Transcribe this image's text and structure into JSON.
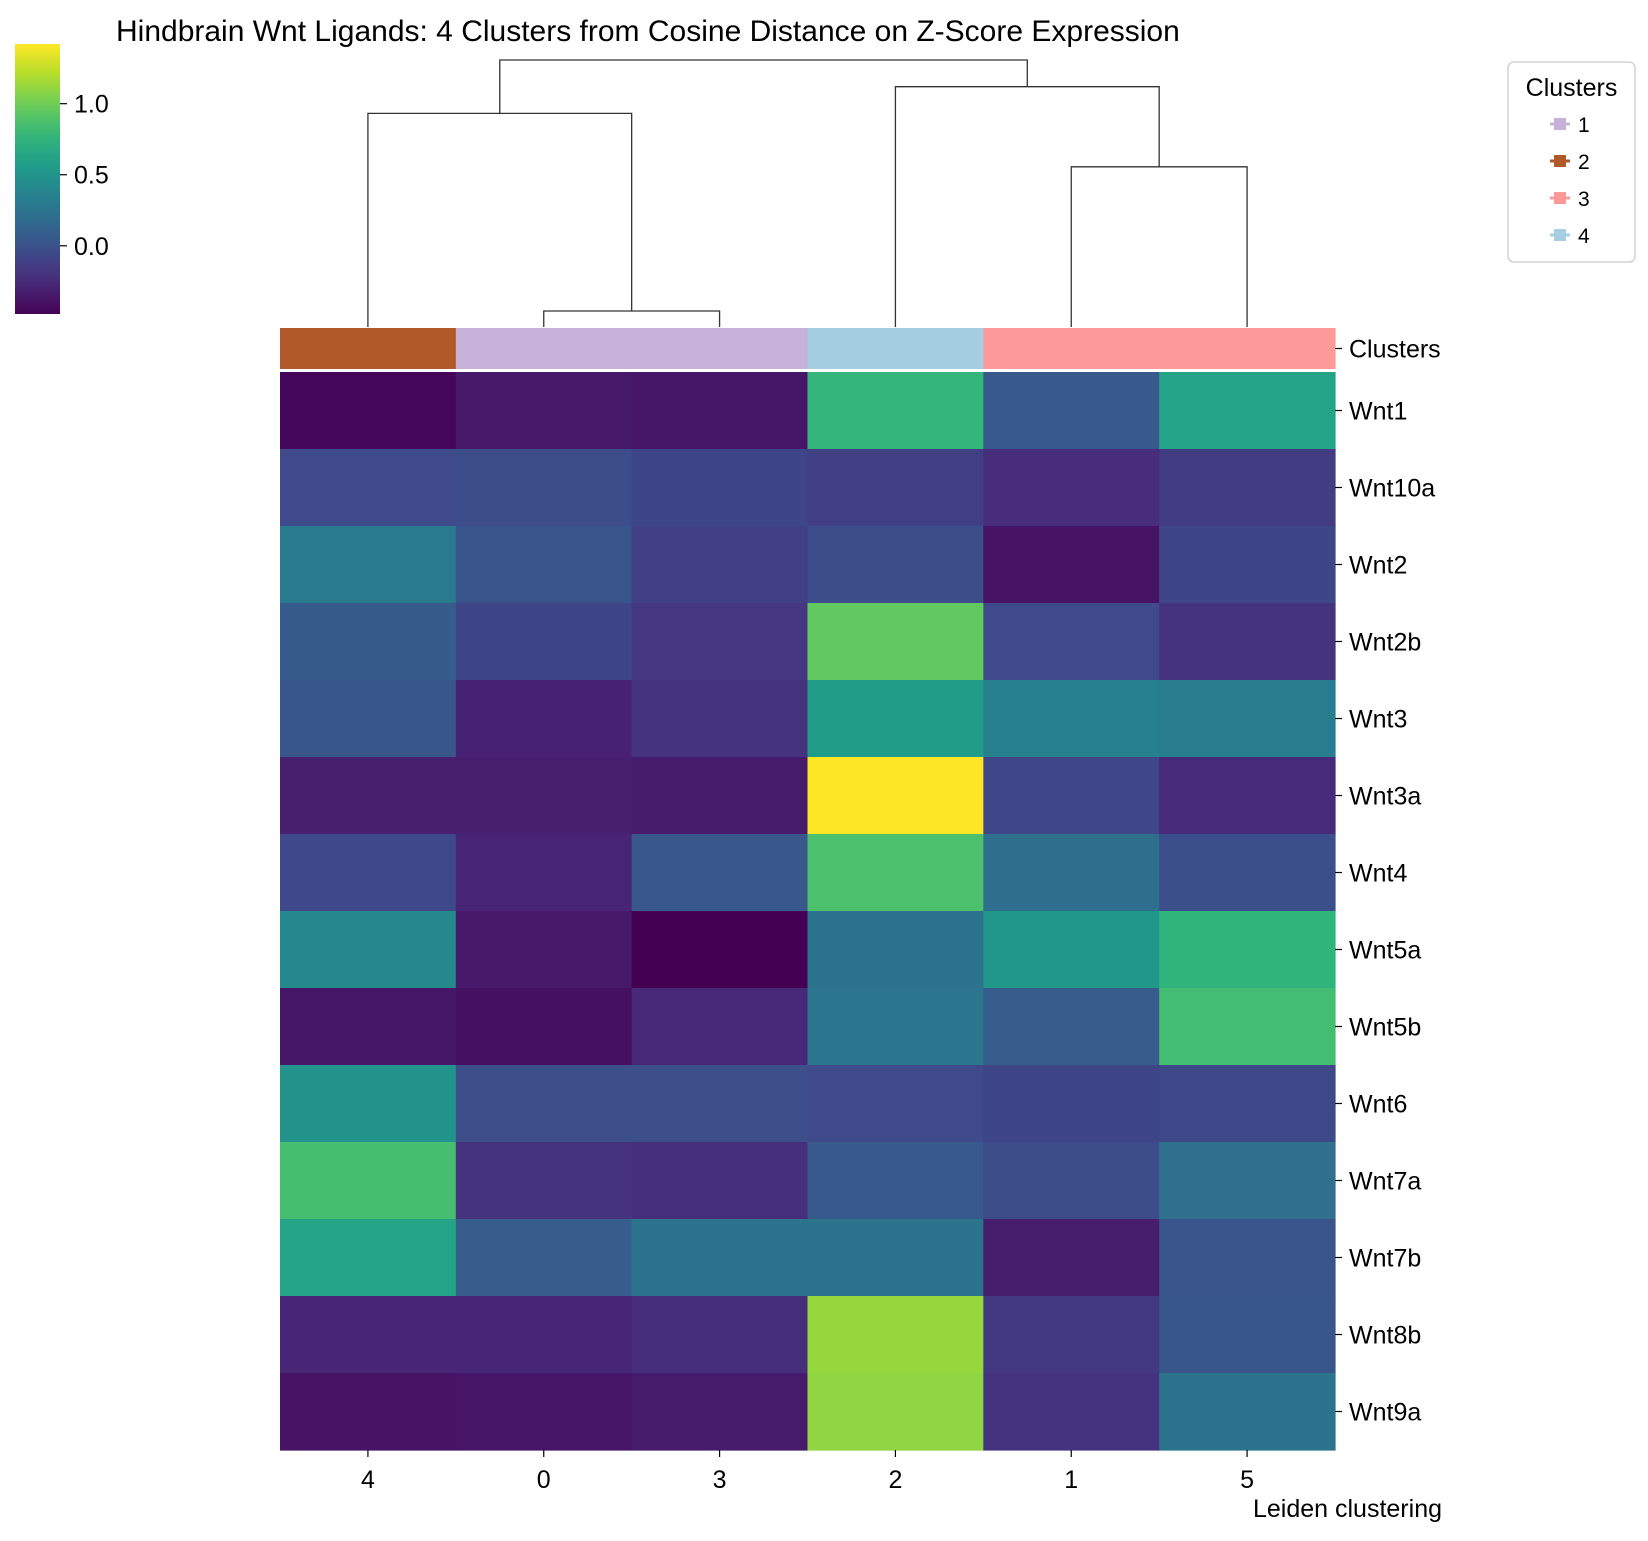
{
  "chart_data": {
    "type": "heatmap",
    "title": "Hindbrain Wnt Ligands: 4 Clusters from Cosine Distance on Z-Score Expression",
    "xlabel": "Leiden clustering",
    "ylabel": "",
    "columns": [
      "4",
      "0",
      "3",
      "2",
      "1",
      "5"
    ],
    "rows": [
      "Wnt1",
      "Wnt10a",
      "Wnt2",
      "Wnt2b",
      "Wnt3",
      "Wnt3a",
      "Wnt4",
      "Wnt5a",
      "Wnt5b",
      "Wnt6",
      "Wnt7a",
      "Wnt7b",
      "Wnt8b",
      "Wnt9a"
    ],
    "values": [
      [
        -0.45,
        -0.35,
        -0.36,
        0.78,
        0.05,
        0.62
      ],
      [
        -0.05,
        -0.03,
        -0.08,
        -0.12,
        -0.24,
        -0.14
      ],
      [
        0.3,
        0.02,
        -0.12,
        -0.03,
        -0.38,
        -0.08
      ],
      [
        0.07,
        -0.08,
        -0.18,
        0.95,
        -0.05,
        -0.2
      ],
      [
        0.03,
        -0.3,
        -0.2,
        0.56,
        0.35,
        0.32
      ],
      [
        -0.32,
        -0.32,
        -0.34,
        1.42,
        -0.07,
        -0.25
      ],
      [
        -0.06,
        -0.29,
        0.04,
        0.87,
        0.21,
        -0.01
      ],
      [
        0.41,
        -0.35,
        -0.48,
        0.25,
        0.52,
        0.75
      ],
      [
        -0.36,
        -0.4,
        -0.27,
        0.27,
        0.08,
        0.84
      ],
      [
        0.49,
        -0.02,
        -0.02,
        -0.05,
        -0.08,
        -0.06
      ],
      [
        0.85,
        -0.2,
        -0.22,
        0.05,
        -0.03,
        0.22
      ],
      [
        0.62,
        0.08,
        0.25,
        0.24,
        -0.33,
        0.02
      ],
      [
        -0.28,
        -0.28,
        -0.23,
        1.12,
        -0.16,
        0.03
      ],
      [
        -0.38,
        -0.37,
        -0.34,
        1.1,
        -0.2,
        0.25
      ]
    ],
    "colormap": "viridis",
    "vmin": -0.48,
    "vmax": 1.42,
    "colorbar_ticks": [
      "1.0",
      "0.5",
      "0.0"
    ],
    "cluster_annotation": {
      "label": "Clusters",
      "assignments": [
        "2",
        "1",
        "1",
        "4",
        "3",
        "3"
      ]
    },
    "legend": {
      "title": "Clusters",
      "placement": "top-right",
      "entries": [
        {
          "label": "1",
          "color": "#c7b1d8"
        },
        {
          "label": "2",
          "color": "#b15928"
        },
        {
          "label": "3",
          "color": "#fb9a99"
        },
        {
          "label": "4",
          "color": "#a6cee3"
        }
      ]
    },
    "dendrogram": {
      "position": "top",
      "merges": [
        {
          "left": "0",
          "right": "3",
          "height": 0.06
        },
        {
          "left": "1",
          "right": "5",
          "height": 0.6
        },
        {
          "left": "4",
          "right": "0,3",
          "height": 0.8
        },
        {
          "left": "2",
          "right": "1,5",
          "height": 0.9
        },
        {
          "left": "4,0,3",
          "right": "2,1,5",
          "height": 1.0
        }
      ]
    }
  }
}
